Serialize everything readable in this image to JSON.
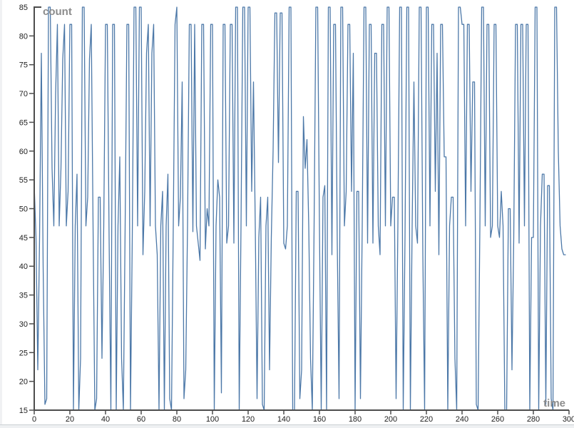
{
  "chart_data": {
    "type": "line",
    "title": "",
    "xlabel": "time",
    "ylabel": "count",
    "xlim": [
      0,
      300
    ],
    "ylim": [
      15,
      85
    ],
    "x_ticks": [
      0,
      20,
      40,
      60,
      80,
      100,
      120,
      140,
      160,
      180,
      200,
      220,
      240,
      260,
      280,
      300
    ],
    "y_ticks": [
      15,
      20,
      25,
      30,
      35,
      40,
      45,
      50,
      55,
      60,
      65,
      70,
      75,
      80,
      85
    ],
    "grid": false,
    "legend": false,
    "line_color": "#4c78a8",
    "axis_color": "#4d4d4d",
    "tick_label_color": "#212121",
    "axis_title_color": "#8c8c8c",
    "background_color": "#ffffff",
    "points": [
      [
        0,
        54
      ],
      [
        1,
        45
      ],
      [
        2,
        22
      ],
      [
        3,
        45
      ],
      [
        4,
        77
      ],
      [
        5,
        40
      ],
      [
        6,
        16
      ],
      [
        7,
        17
      ],
      [
        8,
        85
      ],
      [
        9,
        85
      ],
      [
        10,
        57
      ],
      [
        11,
        47
      ],
      [
        12,
        70
      ],
      [
        13,
        82
      ],
      [
        14,
        47
      ],
      [
        15,
        57
      ],
      [
        16,
        76
      ],
      [
        17,
        82
      ],
      [
        18,
        47
      ],
      [
        19,
        53
      ],
      [
        20,
        82
      ],
      [
        21,
        82
      ],
      [
        22,
        15
      ],
      [
        23,
        47
      ],
      [
        24,
        56
      ],
      [
        25,
        15
      ],
      [
        26,
        24
      ],
      [
        27,
        85
      ],
      [
        28,
        85
      ],
      [
        29,
        47
      ],
      [
        30,
        52
      ],
      [
        31,
        76
      ],
      [
        32,
        82
      ],
      [
        33,
        47
      ],
      [
        34,
        15
      ],
      [
        35,
        17
      ],
      [
        36,
        52
      ],
      [
        37,
        52
      ],
      [
        38,
        24
      ],
      [
        39,
        47
      ],
      [
        40,
        82
      ],
      [
        41,
        82
      ],
      [
        42,
        45
      ],
      [
        43,
        15
      ],
      [
        44,
        82
      ],
      [
        45,
        82
      ],
      [
        46,
        15
      ],
      [
        47,
        47
      ],
      [
        48,
        59
      ],
      [
        49,
        24
      ],
      [
        50,
        15
      ],
      [
        51,
        47
      ],
      [
        52,
        82
      ],
      [
        53,
        82
      ],
      [
        54,
        15
      ],
      [
        55,
        45
      ],
      [
        56,
        85
      ],
      [
        57,
        85
      ],
      [
        58,
        47
      ],
      [
        59,
        85
      ],
      [
        60,
        85
      ],
      [
        61,
        42
      ],
      [
        62,
        53
      ],
      [
        63,
        77
      ],
      [
        64,
        82
      ],
      [
        65,
        47
      ],
      [
        66,
        77
      ],
      [
        67,
        82
      ],
      [
        68,
        47
      ],
      [
        69,
        42
      ],
      [
        70,
        15
      ],
      [
        71,
        47
      ],
      [
        72,
        53
      ],
      [
        73,
        15
      ],
      [
        74,
        47
      ],
      [
        75,
        56
      ],
      [
        76,
        17
      ],
      [
        77,
        15
      ],
      [
        78,
        47
      ],
      [
        79,
        82
      ],
      [
        80,
        85
      ],
      [
        81,
        47
      ],
      [
        82,
        52
      ],
      [
        83,
        72
      ],
      [
        84,
        17
      ],
      [
        85,
        22
      ],
      [
        86,
        47
      ],
      [
        87,
        82
      ],
      [
        88,
        82
      ],
      [
        89,
        46
      ],
      [
        90,
        82
      ],
      [
        91,
        47
      ],
      [
        92,
        44
      ],
      [
        93,
        41
      ],
      [
        94,
        82
      ],
      [
        95,
        82
      ],
      [
        96,
        43
      ],
      [
        97,
        50
      ],
      [
        98,
        47
      ],
      [
        99,
        82
      ],
      [
        100,
        82
      ],
      [
        101,
        15
      ],
      [
        102,
        47
      ],
      [
        103,
        55
      ],
      [
        104,
        52
      ],
      [
        105,
        18
      ],
      [
        106,
        82
      ],
      [
        107,
        82
      ],
      [
        108,
        44
      ],
      [
        109,
        47
      ],
      [
        110,
        82
      ],
      [
        111,
        82
      ],
      [
        112,
        44
      ],
      [
        113,
        85
      ],
      [
        114,
        85
      ],
      [
        115,
        15
      ],
      [
        116,
        47
      ],
      [
        117,
        85
      ],
      [
        118,
        85
      ],
      [
        119,
        47
      ],
      [
        120,
        85
      ],
      [
        121,
        85
      ],
      [
        122,
        53
      ],
      [
        123,
        72
      ],
      [
        124,
        47
      ],
      [
        125,
        17
      ],
      [
        126,
        45
      ],
      [
        127,
        52
      ],
      [
        128,
        16
      ],
      [
        129,
        15
      ],
      [
        130,
        47
      ],
      [
        131,
        52
      ],
      [
        132,
        22
      ],
      [
        133,
        45
      ],
      [
        134,
        60
      ],
      [
        135,
        84
      ],
      [
        136,
        84
      ],
      [
        137,
        58
      ],
      [
        138,
        84
      ],
      [
        139,
        84
      ],
      [
        140,
        44
      ],
      [
        141,
        43
      ],
      [
        142,
        47
      ],
      [
        143,
        85
      ],
      [
        144,
        85
      ],
      [
        145,
        15
      ],
      [
        146,
        15
      ],
      [
        147,
        53
      ],
      [
        148,
        53
      ],
      [
        149,
        17
      ],
      [
        150,
        22
      ],
      [
        151,
        66
      ],
      [
        152,
        57
      ],
      [
        153,
        62
      ],
      [
        154,
        47
      ],
      [
        155,
        24
      ],
      [
        156,
        15
      ],
      [
        157,
        47
      ],
      [
        158,
        85
      ],
      [
        159,
        85
      ],
      [
        160,
        47
      ],
      [
        161,
        15
      ],
      [
        162,
        52
      ],
      [
        163,
        54
      ],
      [
        164,
        15
      ],
      [
        165,
        85
      ],
      [
        166,
        85
      ],
      [
        167,
        42
      ],
      [
        168,
        82
      ],
      [
        169,
        82
      ],
      [
        170,
        44
      ],
      [
        171,
        17
      ],
      [
        172,
        85
      ],
      [
        173,
        85
      ],
      [
        174,
        47
      ],
      [
        175,
        53
      ],
      [
        176,
        82
      ],
      [
        177,
        82
      ],
      [
        178,
        53
      ],
      [
        179,
        77
      ],
      [
        180,
        15
      ],
      [
        181,
        53
      ],
      [
        182,
        53
      ],
      [
        183,
        17
      ],
      [
        184,
        47
      ],
      [
        185,
        85
      ],
      [
        186,
        85
      ],
      [
        187,
        44
      ],
      [
        188,
        82
      ],
      [
        189,
        82
      ],
      [
        190,
        44
      ],
      [
        191,
        77
      ],
      [
        192,
        77
      ],
      [
        193,
        47
      ],
      [
        194,
        42
      ],
      [
        195,
        82
      ],
      [
        196,
        82
      ],
      [
        197,
        47
      ],
      [
        198,
        85
      ],
      [
        199,
        85
      ],
      [
        200,
        47
      ],
      [
        201,
        52
      ],
      [
        202,
        52
      ],
      [
        203,
        17
      ],
      [
        204,
        47
      ],
      [
        205,
        85
      ],
      [
        206,
        85
      ],
      [
        207,
        15
      ],
      [
        208,
        45
      ],
      [
        209,
        85
      ],
      [
        210,
        85
      ],
      [
        211,
        15
      ],
      [
        212,
        47
      ],
      [
        213,
        72
      ],
      [
        214,
        47
      ],
      [
        215,
        44
      ],
      [
        216,
        85
      ],
      [
        217,
        85
      ],
      [
        218,
        42
      ],
      [
        219,
        15
      ],
      [
        220,
        85
      ],
      [
        221,
        85
      ],
      [
        222,
        47
      ],
      [
        223,
        82
      ],
      [
        224,
        82
      ],
      [
        225,
        53
      ],
      [
        226,
        77
      ],
      [
        227,
        42
      ],
      [
        228,
        82
      ],
      [
        229,
        82
      ],
      [
        230,
        59
      ],
      [
        231,
        59
      ],
      [
        232,
        15
      ],
      [
        233,
        47
      ],
      [
        234,
        52
      ],
      [
        235,
        52
      ],
      [
        236,
        24
      ],
      [
        237,
        15
      ],
      [
        238,
        85
      ],
      [
        239,
        85
      ],
      [
        240,
        82
      ],
      [
        241,
        82
      ],
      [
        242,
        47
      ],
      [
        243,
        82
      ],
      [
        244,
        82
      ],
      [
        245,
        53
      ],
      [
        246,
        72
      ],
      [
        247,
        72
      ],
      [
        248,
        16
      ],
      [
        249,
        15
      ],
      [
        250,
        47
      ],
      [
        251,
        85
      ],
      [
        252,
        85
      ],
      [
        253,
        47
      ],
      [
        254,
        82
      ],
      [
        255,
        82
      ],
      [
        256,
        45
      ],
      [
        257,
        47
      ],
      [
        258,
        82
      ],
      [
        259,
        82
      ],
      [
        260,
        47
      ],
      [
        261,
        45
      ],
      [
        262,
        53
      ],
      [
        263,
        47
      ],
      [
        264,
        15
      ],
      [
        265,
        15
      ],
      [
        266,
        50
      ],
      [
        267,
        50
      ],
      [
        268,
        22
      ],
      [
        269,
        45
      ],
      [
        270,
        82
      ],
      [
        271,
        82
      ],
      [
        272,
        44
      ],
      [
        273,
        82
      ],
      [
        274,
        82
      ],
      [
        275,
        47
      ],
      [
        276,
        82
      ],
      [
        277,
        82
      ],
      [
        278,
        15
      ],
      [
        279,
        45
      ],
      [
        280,
        45
      ],
      [
        281,
        85
      ],
      [
        282,
        85
      ],
      [
        283,
        15
      ],
      [
        284,
        47
      ],
      [
        285,
        56
      ],
      [
        286,
        56
      ],
      [
        287,
        16
      ],
      [
        288,
        54
      ],
      [
        289,
        54
      ],
      [
        290,
        17
      ],
      [
        291,
        15
      ],
      [
        292,
        85
      ],
      [
        293,
        85
      ],
      [
        294,
        60
      ],
      [
        295,
        47
      ],
      [
        296,
        43
      ],
      [
        297,
        42
      ],
      [
        298,
        42
      ]
    ]
  }
}
